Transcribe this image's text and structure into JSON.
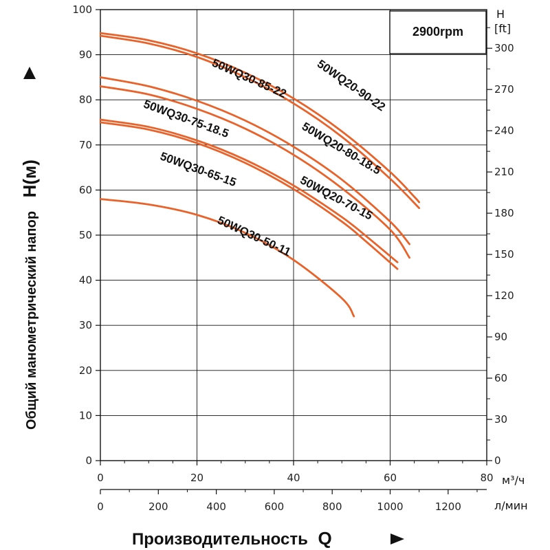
{
  "chart_data": {
    "type": "line",
    "title": "",
    "rpm_label": "2900rpm",
    "y_axis": {
      "label": "Общий манометрический напор",
      "symbol": "H(м)",
      "ticks": [
        0,
        10,
        20,
        30,
        40,
        50,
        60,
        70,
        80,
        90,
        100
      ],
      "range": [
        0,
        100
      ]
    },
    "y2_axis": {
      "label_line1": "H",
      "label_line2": "[ft]",
      "ticks": [
        0,
        30,
        60,
        90,
        120,
        150,
        180,
        210,
        240,
        270,
        300
      ],
      "range_ft": [
        0,
        328.1
      ]
    },
    "x_axis": {
      "label": "Производительность",
      "symbol": "Q",
      "unit": "м³/ч",
      "ticks": [
        0,
        20,
        40,
        60,
        80
      ],
      "range": [
        0,
        80
      ]
    },
    "x2_axis": {
      "unit": "л/мин",
      "ticks": [
        0,
        200,
        400,
        600,
        800,
        1000,
        1200
      ],
      "range_lmin": [
        0,
        1333.3
      ]
    },
    "grid": true,
    "colors": {
      "curve": "#e8622a",
      "axis": "#111111",
      "grid": "#111111"
    },
    "series": [
      {
        "name": "50WQ20-90-22",
        "x": [
          0,
          10,
          20,
          30,
          40,
          50,
          60,
          65,
          66
        ],
        "y": [
          94.8,
          93.2,
          90.3,
          86.0,
          80.3,
          73.0,
          64.0,
          58.5,
          57.3
        ]
      },
      {
        "name": "50WQ30-85-22",
        "x": [
          0,
          10,
          20,
          30,
          40,
          50,
          60,
          66
        ],
        "y": [
          94.2,
          92.5,
          89.5,
          85.0,
          79.2,
          71.8,
          62.5,
          56.0
        ]
      },
      {
        "name": "50WQ20-80-18.5",
        "x": [
          0,
          10,
          20,
          30,
          40,
          50,
          60,
          64
        ],
        "y": [
          85.0,
          83.0,
          79.8,
          75.4,
          69.6,
          62.3,
          53.0,
          48.0
        ]
      },
      {
        "name": "50WQ30-75-18.5",
        "x": [
          0,
          10,
          20,
          30,
          40,
          50,
          60,
          64
        ],
        "y": [
          83.0,
          81.2,
          78.0,
          73.6,
          67.8,
          60.4,
          51.2,
          45.0
        ]
      },
      {
        "name": "50WQ20-70-15",
        "x": [
          0,
          10,
          20,
          30,
          40,
          50,
          55,
          61.5
        ],
        "y": [
          75.6,
          74.0,
          71.0,
          66.7,
          61.0,
          54.0,
          49.8,
          44.0
        ]
      },
      {
        "name": "50WQ30-65-15",
        "x": [
          0,
          10,
          20,
          30,
          40,
          50,
          55,
          61.5
        ],
        "y": [
          75.0,
          73.4,
          70.4,
          66.0,
          60.2,
          53.0,
          48.6,
          42.5
        ]
      },
      {
        "name": "50WQ30-50-11",
        "x": [
          0,
          10,
          20,
          30,
          40,
          50,
          52.5
        ],
        "y": [
          58.0,
          56.8,
          54.5,
          50.5,
          44.5,
          36.0,
          32.0
        ]
      }
    ],
    "labels": [
      {
        "text": "50WQ20-90-22",
        "x": 51.5,
        "y": 82.5,
        "angle": 35
      },
      {
        "text": "50WQ30-85-22",
        "x": 30.5,
        "y": 84.0,
        "angle": 24
      },
      {
        "text": "50WQ20-80-18.5",
        "x": 49.5,
        "y": 68.5,
        "angle": 31
      },
      {
        "text": "50WQ30-75-18.5",
        "x": 17.5,
        "y": 75.0,
        "angle": 20
      },
      {
        "text": "50WQ20-70-15",
        "x": 48.5,
        "y": 57.5,
        "angle": 28
      },
      {
        "text": "50WQ30-65-15",
        "x": 20.0,
        "y": 63.8,
        "angle": 20
      },
      {
        "text": "50WQ30-50-11",
        "x": 31.5,
        "y": 49.0,
        "angle": 25
      }
    ]
  }
}
